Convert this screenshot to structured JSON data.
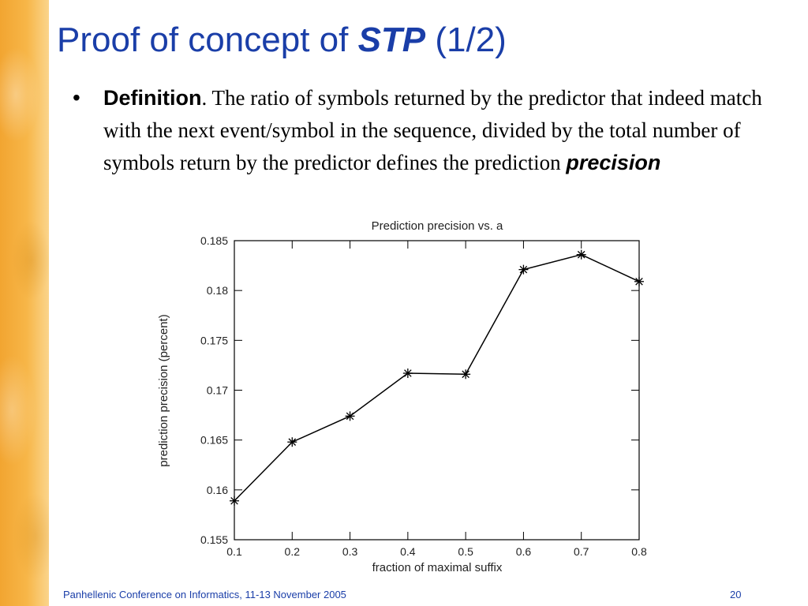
{
  "slide": {
    "title_prefix": "Proof of concept of ",
    "title_emphasis": "STP",
    "title_suffix": " (1/2)",
    "bullet_symbol": "•",
    "definition_label": "Definition",
    "definition_text": ". The ratio of symbols returned by the predictor that indeed match with the next event/symbol in the sequence, divided by the total number of symbols return by the predictor defines the prediction ",
    "definition_emphasis": "precision"
  },
  "footer": {
    "conference": "Panhellenic Conference on Informatics, 11-13 November 2005",
    "page_number": "20"
  },
  "colors": {
    "title": "#1a3ea8",
    "side_strip": "#f5ac3a"
  },
  "chart_data": {
    "type": "line",
    "title": "Prediction precision vs. a",
    "xlabel": "fraction of maximal suffix",
    "ylabel": "prediction precision (percent)",
    "x": [
      0.1,
      0.2,
      0.3,
      0.4,
      0.5,
      0.6,
      0.7,
      0.8
    ],
    "series": [
      {
        "values": [
          0.1589,
          0.1648,
          0.1674,
          0.1717,
          0.1716,
          0.1821,
          0.1836,
          0.1809
        ]
      }
    ],
    "xlim": [
      0.1,
      0.8
    ],
    "ylim": [
      0.155,
      0.185
    ],
    "xticks": [
      "0.1",
      "0.2",
      "0.3",
      "0.4",
      "0.5",
      "0.6",
      "0.7",
      "0.8"
    ],
    "yticks": [
      "0.155",
      "0.16",
      "0.165",
      "0.17",
      "0.175",
      "0.18",
      "0.185"
    ],
    "marker": "asterisk",
    "grid": false,
    "legend": "none"
  }
}
